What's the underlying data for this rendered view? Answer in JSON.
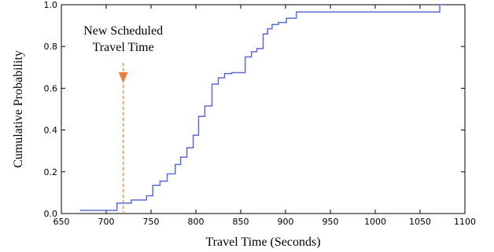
{
  "chart_data": {
    "type": "line",
    "step": true,
    "xlabel": "Travel Time (Seconds)",
    "ylabel": "Cumulative Probability",
    "xlim": [
      650,
      1100
    ],
    "ylim": [
      0.0,
      1.0
    ],
    "x_ticks": [
      "650",
      "700",
      "750",
      "800",
      "850",
      "900",
      "950",
      "1000",
      "1050",
      "1100"
    ],
    "y_ticks": [
      "0.0",
      "0.2",
      "0.4",
      "0.6",
      "0.8",
      "1.0"
    ],
    "grid": false,
    "series": [
      {
        "color": "#5b6cd9",
        "x": [
          671,
          712,
          728,
          745,
          752,
          760,
          768,
          777,
          783,
          790,
          797,
          803,
          810,
          818,
          825,
          832,
          840,
          855,
          862,
          868,
          875,
          880,
          885,
          892,
          901,
          912,
          918,
          1072,
          1075
        ],
        "y": [
          0.015,
          0.05,
          0.065,
          0.085,
          0.135,
          0.155,
          0.19,
          0.235,
          0.27,
          0.315,
          0.375,
          0.465,
          0.515,
          0.62,
          0.65,
          0.67,
          0.675,
          0.75,
          0.775,
          0.79,
          0.86,
          0.885,
          0.905,
          0.915,
          0.935,
          0.965,
          0.965,
          1.0,
          1.0
        ]
      }
    ],
    "annotation": {
      "lines": [
        "New Scheduled",
        "Travel Time"
      ],
      "x": 719,
      "color": "#f07d3a"
    }
  }
}
